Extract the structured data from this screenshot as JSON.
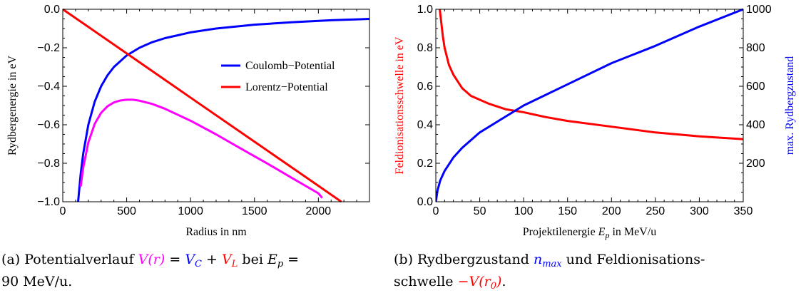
{
  "chart_data": [
    {
      "type": "line",
      "xlabel": "Radius in nm",
      "ylabel": "Rydbergenergie in eV",
      "xlim": [
        0,
        2400
      ],
      "ylim": [
        -1.0,
        0.0
      ],
      "x_ticks": [
        0,
        500,
        1000,
        1500,
        2000
      ],
      "x_tick_labels": [
        "0",
        "500",
        "1000",
        "1500",
        "2000"
      ],
      "y_ticks": [
        0.0,
        -0.2,
        -0.4,
        -0.6,
        -0.8,
        -1.0
      ],
      "y_tick_labels": [
        "0.0",
        "−0.2",
        "−0.4",
        "−0.6",
        "−0.8",
        "−1.0"
      ],
      "grid": false,
      "legend_position": "right",
      "series": [
        {
          "name": "Coulomb−Potential",
          "color": "#0000ff",
          "x": [
            120,
            140,
            160,
            200,
            250,
            300,
            350,
            400,
            500,
            600,
            700,
            800,
            1000,
            1200,
            1500,
            1800,
            2100,
            2400
          ],
          "y": [
            -1.0,
            -0.857,
            -0.75,
            -0.6,
            -0.48,
            -0.4,
            -0.343,
            -0.3,
            -0.24,
            -0.2,
            -0.171,
            -0.15,
            -0.12,
            -0.1,
            -0.08,
            -0.067,
            -0.057,
            -0.05
          ]
        },
        {
          "name": "Lorentz−Potential",
          "color": "#ff0000",
          "x": [
            0,
            500,
            1000,
            1500,
            2000,
            2180
          ],
          "y": [
            0.0,
            -0.229,
            -0.459,
            -0.688,
            -0.917,
            -1.0
          ]
        },
        {
          "color": "#ff00ff",
          "x": [
            140,
            160,
            200,
            250,
            300,
            350,
            400,
            450,
            500,
            550,
            600,
            700,
            800,
            1000,
            1200,
            1400,
            1600,
            1800,
            2000,
            2030
          ],
          "y": [
            -0.921,
            -0.823,
            -0.692,
            -0.595,
            -0.538,
            -0.504,
            -0.484,
            -0.474,
            -0.47,
            -0.47,
            -0.475,
            -0.492,
            -0.517,
            -0.579,
            -0.65,
            -0.726,
            -0.801,
            -0.879,
            -0.956,
            -0.98
          ]
        }
      ],
      "caption": "(a) Potentialverlauf V(r) = V_C + V_L bei E_p = 90 MeV/u."
    },
    {
      "type": "line",
      "xlabel": "Projektilenergie E_p in MeV/u",
      "ylabel": "Feldionisationsschwelle in eV",
      "ylabel_right": "max. Rydbergzustand",
      "xlim": [
        0,
        350
      ],
      "ylim": [
        0.0,
        1.0
      ],
      "ylim_right": [
        0,
        1000
      ],
      "x_ticks": [
        0,
        50,
        100,
        150,
        200,
        250,
        300,
        350
      ],
      "x_tick_labels": [
        "0",
        "50",
        "100",
        "150",
        "200",
        "250",
        "300",
        "350"
      ],
      "y_ticks": [
        0.0,
        0.2,
        0.4,
        0.6,
        0.8,
        1.0
      ],
      "y_tick_labels": [
        "0.0",
        "0.2",
        "0.4",
        "0.6",
        "0.8",
        "1.0"
      ],
      "y_ticks_right": [
        200,
        400,
        600,
        800,
        1000
      ],
      "y_tick_labels_right": [
        "200",
        "400",
        "600",
        "800",
        "1000"
      ],
      "grid": false,
      "series": [
        {
          "color": "#ff0000",
          "axis": "left",
          "x": [
            4.5,
            6,
            8,
            10,
            15,
            20,
            30,
            40,
            50,
            60,
            80,
            100,
            125,
            150,
            200,
            250,
            300,
            350
          ],
          "y": [
            1.0,
            0.94,
            0.86,
            0.8,
            0.71,
            0.66,
            0.59,
            0.55,
            0.53,
            0.51,
            0.48,
            0.465,
            0.44,
            0.42,
            0.39,
            0.36,
            0.34,
            0.325
          ]
        },
        {
          "color": "#0000ff",
          "axis": "right",
          "x": [
            0,
            2,
            5,
            10,
            20,
            30,
            50,
            75,
            100,
            150,
            200,
            250,
            300,
            350
          ],
          "y": [
            0,
            60,
            110,
            160,
            230,
            280,
            360,
            430,
            500,
            610,
            720,
            810,
            910,
            1000
          ]
        }
      ],
      "caption": "(b) Rydbergzustand n_max und Feldionisationsschwelle −V(r_0)."
    }
  ],
  "captions": {
    "a_lead": "(a) Potentialverlauf ",
    "a_V": "V",
    "a_r": "(r)",
    "a_eq": " = ",
    "a_VC": "V",
    "a_VC_sub": "C",
    "a_plus": " + ",
    "a_VL": "V",
    "a_VL_sub": "L",
    "a_bei": " bei ",
    "a_E": "E",
    "a_E_sub": "p",
    "a_eq2": " =",
    "a_line2": "90 MeV/u.",
    "b_lead": "(b) Rydbergzustand ",
    "b_n": "n",
    "b_n_sub": "max",
    "b_mid": " und Feldionisations-",
    "b_line2a": "schwelle ",
    "b_minus": "−",
    "b_V": "V",
    "b_r": "(r",
    "b_r_sub": "0",
    "b_close": ")",
    "b_dot": "."
  },
  "colors": {
    "blue": "#0000ff",
    "red": "#ff0000",
    "magenta": "#ff00ff"
  }
}
